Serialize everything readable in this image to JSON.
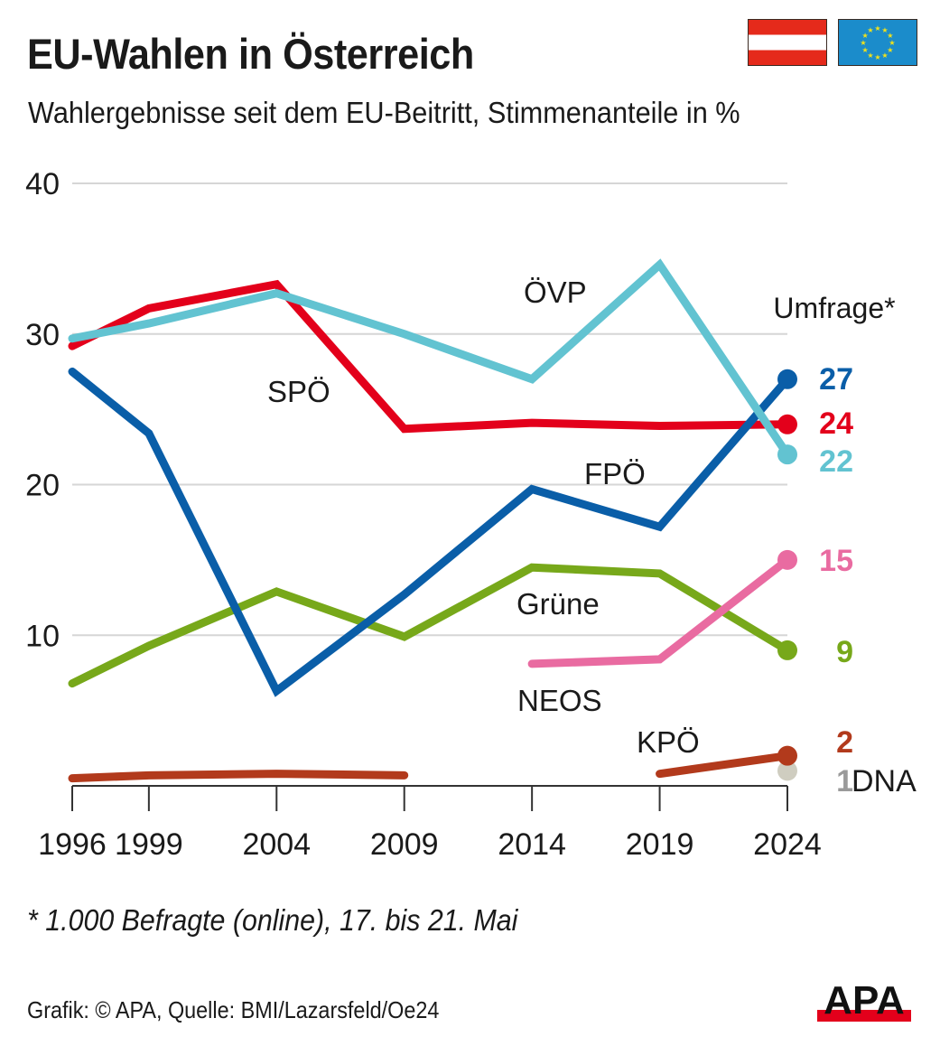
{
  "header": {
    "title": "EU-Wahlen in Österreich",
    "subtitle": "Wahlergebnisse seit dem EU-Beitritt, Stimmenanteile in %"
  },
  "flags": [
    {
      "name": "austria-flag",
      "colors": [
        "#e52a1b",
        "#ffffff",
        "#e52a1b"
      ]
    },
    {
      "name": "eu-flag",
      "colors": [
        "#1b8ccb",
        "#f2e21a"
      ]
    }
  ],
  "footer": {
    "footnote": "* 1.000 Befragte (online), 17. bis 21. Mai",
    "credit": "Grafik: © APA, Quelle: BMI/Lazarsfeld/Oe24",
    "logo_text": "APA",
    "logo_colors": {
      "text": "#111111",
      "bar": "#e3001b"
    }
  },
  "chart_data": {
    "type": "line",
    "title": "EU-Wahlen in Österreich",
    "subtitle": "Wahlergebnisse seit dem EU-Beitritt, Stimmenanteile in %",
    "xlabel": "",
    "ylabel": "",
    "x": [
      1996,
      1999,
      2004,
      2009,
      2014,
      2019,
      2024
    ],
    "x_tick_labels": [
      "1996",
      "1999",
      "2004",
      "2009",
      "2014",
      "2019",
      "2024"
    ],
    "ylim": [
      0,
      40
    ],
    "y_ticks": [
      10,
      20,
      30,
      40
    ],
    "y_tick_labels": [
      "10",
      "20",
      "30",
      "40"
    ],
    "grid": true,
    "poll_label": "Umfrage*",
    "poll_year": 2024,
    "series": [
      {
        "name": "ÖVP",
        "color": "#62c3d1",
        "label": "ÖVP",
        "values": [
          29.7,
          30.7,
          32.7,
          30.0,
          27.0,
          34.6,
          22
        ],
        "poll_label": "22"
      },
      {
        "name": "SPÖ",
        "color": "#e3001b",
        "label": "SPÖ",
        "values": [
          29.2,
          31.7,
          33.3,
          23.7,
          24.1,
          23.9,
          24
        ],
        "poll_label": "24"
      },
      {
        "name": "FPÖ",
        "color": "#0a5ea8",
        "label": "FPÖ",
        "values": [
          27.5,
          23.4,
          6.3,
          12.7,
          19.7,
          17.2,
          27
        ],
        "poll_label": "27"
      },
      {
        "name": "Grüne",
        "color": "#77a81a",
        "label": "Grüne",
        "values": [
          6.8,
          9.3,
          12.9,
          9.9,
          14.5,
          14.1,
          9
        ],
        "poll_label": "9"
      },
      {
        "name": "NEOS",
        "color": "#e96ba1",
        "label": "NEOS",
        "values": [
          null,
          null,
          null,
          null,
          8.1,
          8.4,
          15
        ],
        "poll_label": "15"
      },
      {
        "name": "KPÖ",
        "color": "#b23a1c",
        "label": "KPÖ",
        "values": [
          0.5,
          0.7,
          0.8,
          0.7,
          null,
          0.8,
          2
        ],
        "poll_label": "2",
        "segments_break_after": 2009
      },
      {
        "name": "DNA",
        "color": "#cfcdc0",
        "label": "DNA",
        "values": [
          null,
          null,
          null,
          null,
          null,
          null,
          1
        ],
        "poll_label": "1",
        "poll_label_color": "#9a9a9a"
      }
    ]
  }
}
